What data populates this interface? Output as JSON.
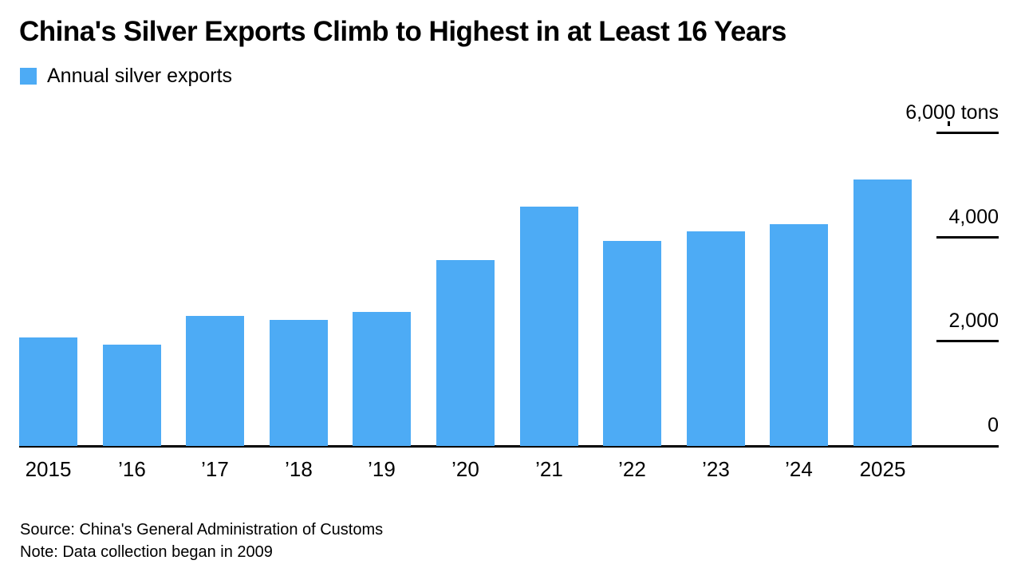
{
  "title": "China's Silver Exports Climb to Highest in at Least 16 Years",
  "legend": {
    "label": "Annual silver exports",
    "color": "#4DABF5"
  },
  "source_line": "Source: China's General Administration of Customs",
  "note_line": "Note: Data collection began in 2009",
  "chart_data": {
    "type": "bar",
    "title": "China's Silver Exports Climb to Highest in at Least 16 Years",
    "series_name": "Annual silver exports",
    "categories": [
      "2015",
      "’16",
      "’17",
      "’18",
      "’19",
      "’20",
      "’21",
      "’22",
      "’23",
      "’24",
      "2025"
    ],
    "values": [
      2080,
      1940,
      2490,
      2420,
      2570,
      3570,
      4590,
      3940,
      4110,
      4250,
      5110
    ],
    "unit": "tons",
    "xlabel": "",
    "ylabel": "tons",
    "ylim": [
      0,
      6000
    ],
    "y_ticks": [
      0,
      2000,
      4000,
      6000
    ],
    "y_tick_labels": [
      "0",
      "2,000",
      "4,000",
      "6,000 tons"
    ],
    "bar_color": "#4DABF5",
    "grid": "right-side tick dashes only, solid black baseline",
    "legend_position": "top-left"
  }
}
